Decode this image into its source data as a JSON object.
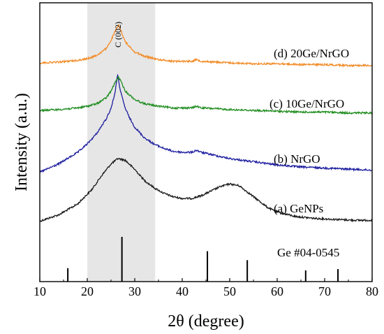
{
  "chart_data": {
    "type": "line",
    "xlabel": "2θ (degree)",
    "ylabel": "Intensity (a.u.)",
    "xlim": [
      10,
      80
    ],
    "xticks": [
      10,
      20,
      30,
      40,
      50,
      60,
      70,
      80
    ],
    "y_ticks_shown": false,
    "grid": false,
    "shaded_region": {
      "x_range": [
        20,
        34.3
      ],
      "color": "#e6e6e6"
    },
    "annotation": {
      "text": "C (002)",
      "x": 26.5
    },
    "reference": {
      "label": "Ge #04-0545",
      "color": "#000000",
      "lines": [
        {
          "x": 15.9,
          "rel_intensity": 0.3
        },
        {
          "x": 27.3,
          "rel_intensity": 1.0
        },
        {
          "x": 45.3,
          "rel_intensity": 0.68
        },
        {
          "x": 53.7,
          "rel_intensity": 0.48
        },
        {
          "x": 66.0,
          "rel_intensity": 0.25
        },
        {
          "x": 72.8,
          "rel_intensity": 0.28
        }
      ]
    },
    "series": [
      {
        "name": "(a) GeNPs",
        "color": "#1a1a1a",
        "x": [
          10,
          14,
          18,
          21,
          23,
          25,
          26.5,
          28,
          30,
          32,
          34,
          36,
          38,
          40,
          42,
          44,
          46,
          48,
          50,
          52,
          54,
          56,
          58,
          60,
          64,
          68,
          72,
          76,
          80
        ],
        "y": [
          0.05,
          0.12,
          0.24,
          0.4,
          0.55,
          0.68,
          0.74,
          0.72,
          0.62,
          0.5,
          0.42,
          0.36,
          0.32,
          0.3,
          0.3,
          0.33,
          0.38,
          0.43,
          0.46,
          0.44,
          0.36,
          0.28,
          0.2,
          0.15,
          0.1,
          0.08,
          0.07,
          0.06,
          0.06
        ]
      },
      {
        "name": "(b) NrGO",
        "color": "#1f1fa0",
        "x": [
          10,
          14,
          18,
          20,
          22,
          24,
          25,
          25.8,
          26.4,
          27,
          28,
          29,
          30,
          32,
          34,
          36,
          38,
          40,
          42,
          43,
          44,
          46,
          50,
          55,
          60,
          65,
          70,
          75,
          80
        ],
        "y": [
          0.05,
          0.13,
          0.24,
          0.32,
          0.42,
          0.56,
          0.66,
          0.8,
          0.98,
          0.82,
          0.66,
          0.56,
          0.48,
          0.38,
          0.32,
          0.28,
          0.25,
          0.24,
          0.24,
          0.26,
          0.24,
          0.22,
          0.18,
          0.15,
          0.12,
          0.1,
          0.09,
          0.08,
          0.07
        ]
      },
      {
        "name": "(c) 10Ge/NrGO",
        "color": "#1e8c1e",
        "x": [
          10,
          14,
          18,
          20,
          22,
          24,
          25,
          26,
          26.6,
          27.2,
          28,
          30,
          32,
          35,
          38,
          42,
          43,
          44,
          47,
          50,
          55,
          60,
          65,
          70,
          75,
          80
        ],
        "y": [
          0.05,
          0.06,
          0.08,
          0.1,
          0.13,
          0.2,
          0.28,
          0.4,
          0.45,
          0.38,
          0.28,
          0.18,
          0.13,
          0.1,
          0.08,
          0.08,
          0.1,
          0.08,
          0.07,
          0.06,
          0.05,
          0.04,
          0.03,
          0.03,
          0.02,
          0.02
        ]
      },
      {
        "name": "(d) 20Ge/NrGO",
        "color": "#f28c28",
        "x": [
          10,
          14,
          18,
          20,
          22,
          24,
          25,
          26,
          26.6,
          27.2,
          28,
          30,
          32,
          35,
          38,
          42,
          43,
          44,
          47,
          50,
          55,
          60,
          65,
          70,
          75,
          80
        ],
        "y": [
          0.05,
          0.06,
          0.08,
          0.1,
          0.14,
          0.22,
          0.32,
          0.44,
          0.5,
          0.42,
          0.3,
          0.18,
          0.13,
          0.09,
          0.07,
          0.07,
          0.09,
          0.07,
          0.06,
          0.05,
          0.04,
          0.04,
          0.03,
          0.03,
          0.02,
          0.02
        ]
      }
    ]
  }
}
